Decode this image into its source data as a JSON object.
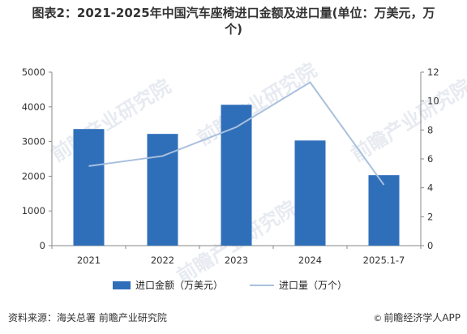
{
  "title_line1": "图表2：2021-2025年中国汽车座椅进口金额及进口量(单位：万美元，万",
  "title_line2": "个)",
  "source": "资料来源：海关总署 前瞻产业研究院",
  "brand": "前瞻经济学人APP",
  "brand_icon": "copyright-icon",
  "watermark": "前瞻产业研究院",
  "colors": {
    "bar": "#2f6fba",
    "line": "#a9c0dd",
    "axis": "#888888"
  },
  "chart_data": {
    "type": "bar",
    "categories": [
      "2021",
      "2022",
      "2023",
      "2024",
      "2025.1-7"
    ],
    "series": [
      {
        "name": "进口金额（万美元）",
        "type": "bar",
        "axis": "left",
        "values": [
          3360,
          3220,
          4060,
          3030,
          2030
        ]
      },
      {
        "name": "进口量（万个）",
        "type": "line",
        "axis": "right",
        "values": [
          5.5,
          6.2,
          8.2,
          11.3,
          4.2
        ]
      }
    ],
    "y_left": {
      "lim": [
        0,
        5000
      ],
      "ticks": [
        0,
        1000,
        2000,
        3000,
        4000,
        5000
      ]
    },
    "y_right": {
      "lim": [
        0,
        12
      ],
      "ticks": [
        0,
        2,
        4,
        6,
        8,
        10,
        12
      ]
    },
    "grid": false,
    "legend_position": "bottom"
  }
}
